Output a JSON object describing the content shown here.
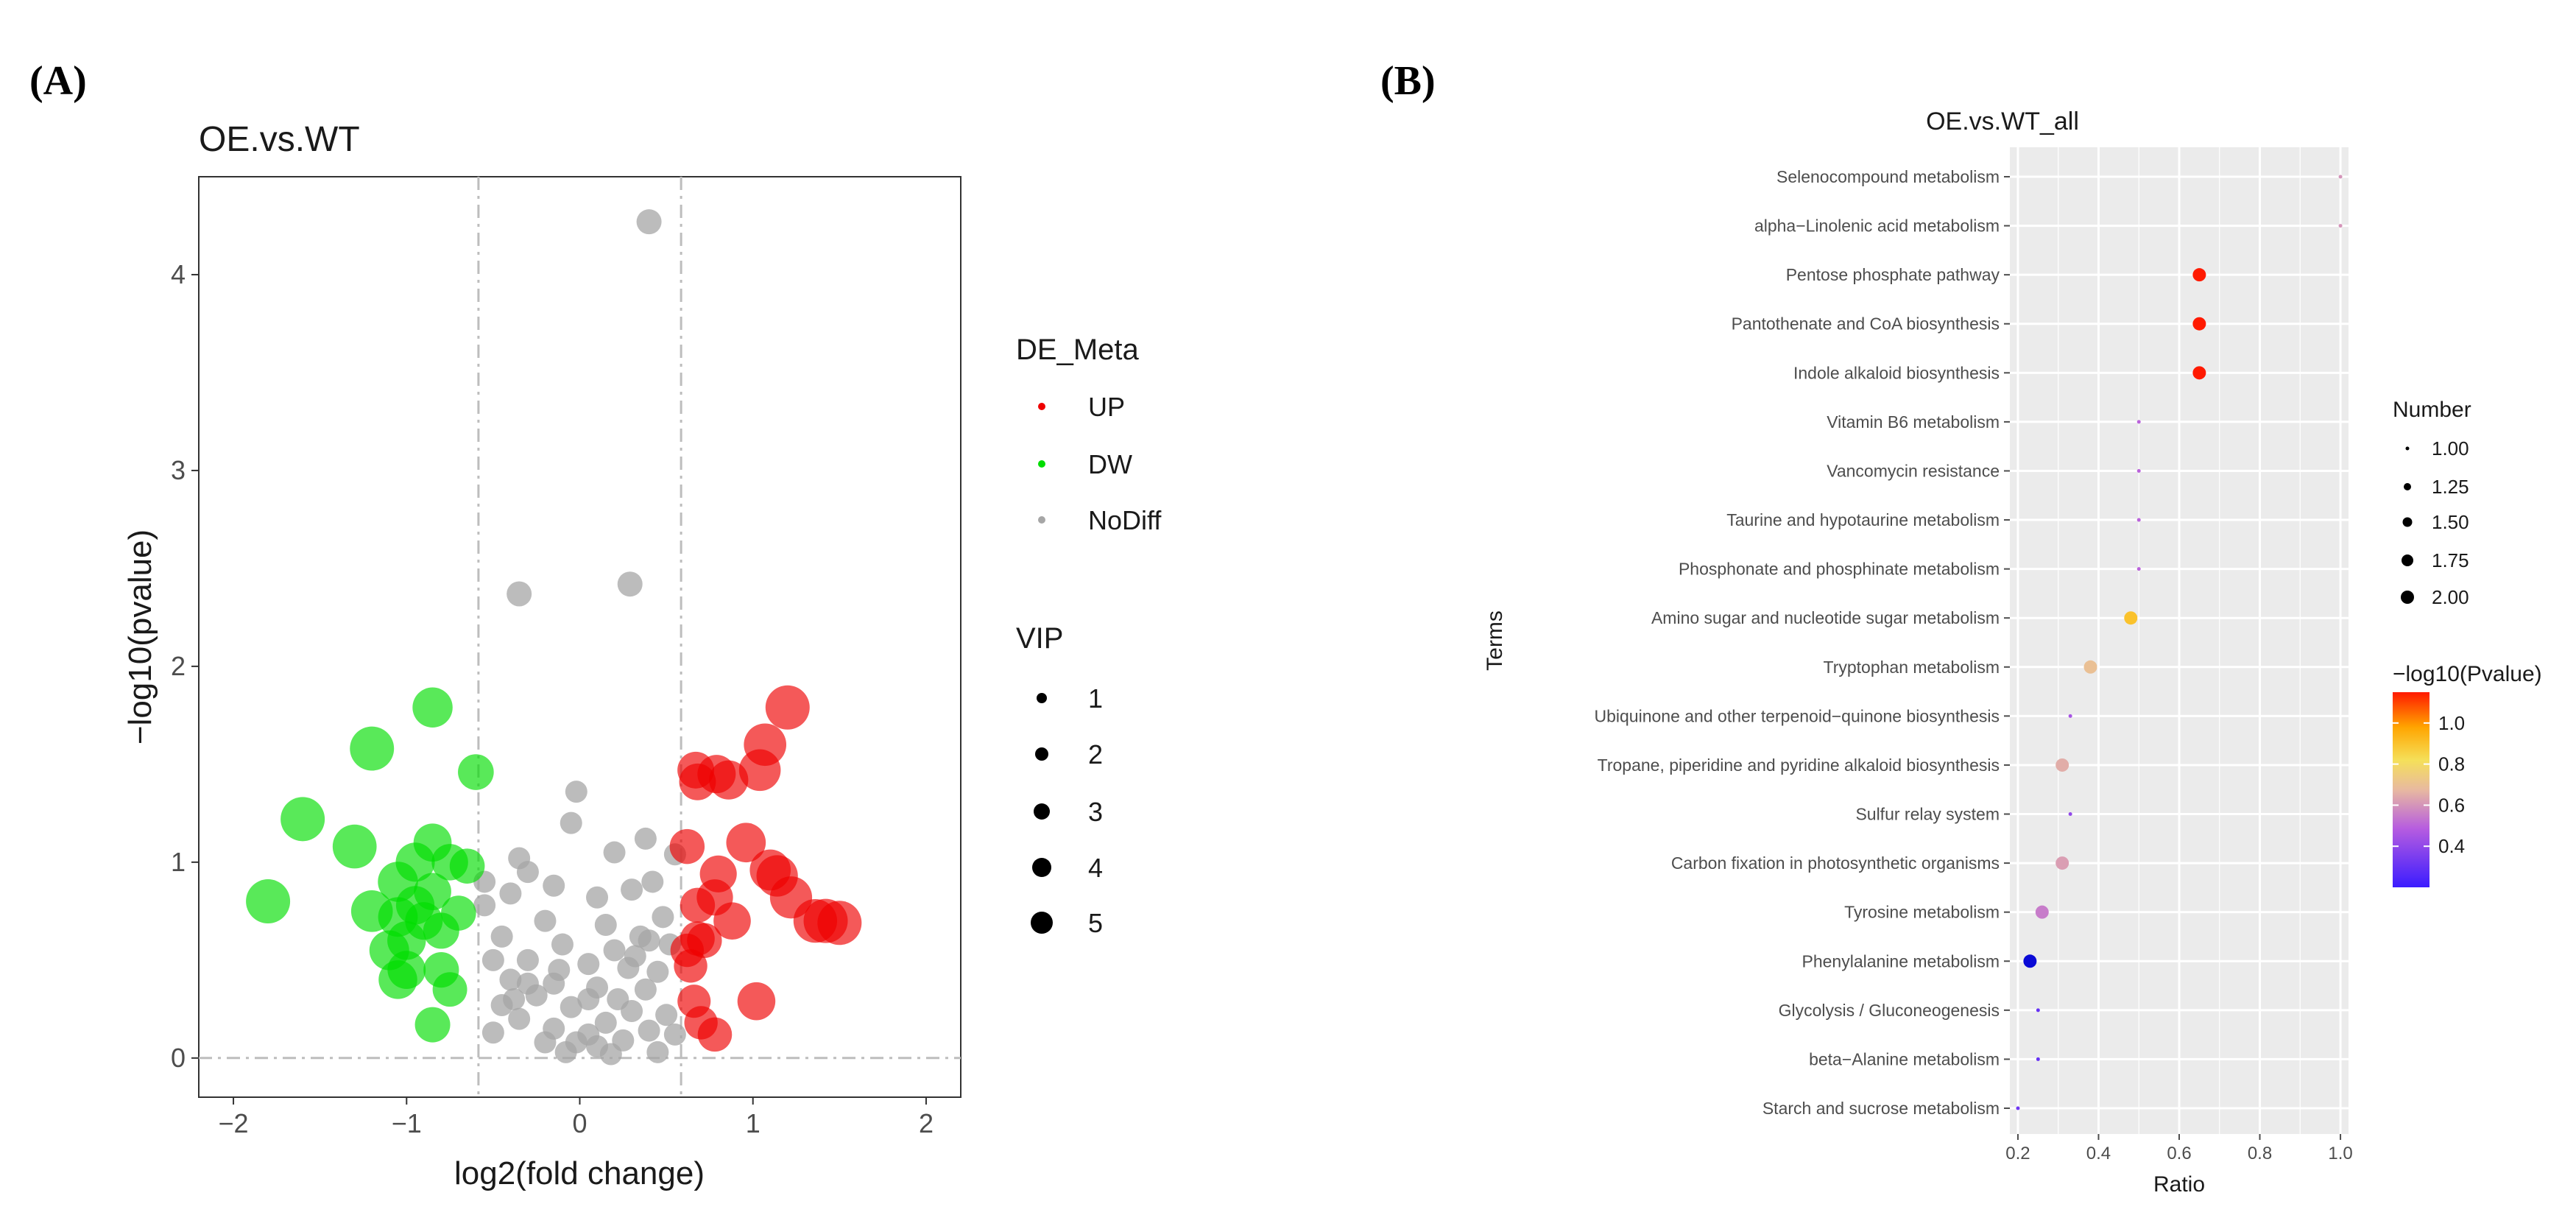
{
  "panel_a": {
    "label": "(A)"
  },
  "panel_b": {
    "label": "(B)"
  },
  "chart_data": [
    {
      "type": "scatter",
      "title": "OE.vs.WT",
      "xlabel": "log2(fold change)",
      "ylabel": "−log10(pvalue)",
      "xlim": [
        -2.2,
        2.2
      ],
      "ylim": [
        -0.2,
        4.5
      ],
      "xticks": [
        -2,
        -1,
        0,
        1,
        2
      ],
      "yticks": [
        0,
        1,
        2,
        3,
        4
      ],
      "grid": false,
      "threshold_lines": {
        "x": [
          -0.585,
          0.585
        ],
        "y": [
          0
        ]
      },
      "colors": {
        "UP": "#ee0000",
        "DW": "#00dd00",
        "NoDiff": "#a6a6a6"
      },
      "legend_color": {
        "title": "DE_Meta",
        "entries": [
          "UP",
          "DW",
          "NoDiff"
        ]
      },
      "legend_size": {
        "title": "VIP",
        "entries": [
          "1",
          "2",
          "3",
          "4",
          "5"
        ]
      },
      "points": {
        "UP": [
          [
            1.2,
            1.79
          ],
          [
            1.07,
            1.6
          ],
          [
            0.67,
            1.47
          ],
          [
            0.79,
            1.45
          ],
          [
            0.68,
            1.41
          ],
          [
            0.86,
            1.42
          ],
          [
            1.04,
            1.47
          ],
          [
            0.96,
            1.1
          ],
          [
            0.62,
            1.08
          ],
          [
            1.1,
            0.96
          ],
          [
            1.14,
            0.93
          ],
          [
            0.8,
            0.94
          ],
          [
            0.78,
            0.82
          ],
          [
            1.22,
            0.82
          ],
          [
            0.68,
            0.78
          ],
          [
            1.36,
            0.7
          ],
          [
            1.5,
            0.69
          ],
          [
            0.88,
            0.7
          ],
          [
            1.42,
            0.7
          ],
          [
            0.68,
            0.61
          ],
          [
            0.72,
            0.6
          ],
          [
            0.64,
            0.47
          ],
          [
            0.62,
            0.55
          ],
          [
            0.66,
            0.29
          ],
          [
            1.02,
            0.29
          ],
          [
            0.7,
            0.18
          ],
          [
            0.78,
            0.12
          ]
        ],
        "DW": [
          [
            -0.85,
            1.79
          ],
          [
            -1.2,
            1.58
          ],
          [
            -0.6,
            1.46
          ],
          [
            -1.6,
            1.22
          ],
          [
            -1.3,
            1.08
          ],
          [
            -0.85,
            1.1
          ],
          [
            -0.95,
            1.0
          ],
          [
            -0.75,
            1.0
          ],
          [
            -0.65,
            0.98
          ],
          [
            -1.05,
            0.9
          ],
          [
            -0.85,
            0.85
          ],
          [
            -0.95,
            0.78
          ],
          [
            -1.8,
            0.8
          ],
          [
            -1.2,
            0.75
          ],
          [
            -1.05,
            0.72
          ],
          [
            -0.9,
            0.7
          ],
          [
            -0.7,
            0.74
          ],
          [
            -1.0,
            0.6
          ],
          [
            -0.8,
            0.65
          ],
          [
            -1.1,
            0.55
          ],
          [
            -1.0,
            0.45
          ],
          [
            -0.8,
            0.45
          ],
          [
            -1.05,
            0.4
          ],
          [
            -0.75,
            0.35
          ],
          [
            -0.85,
            0.17
          ]
        ],
        "NoDiff": [
          [
            0.4,
            4.27
          ],
          [
            0.29,
            2.42
          ],
          [
            -0.35,
            2.37
          ],
          [
            -0.02,
            1.36
          ],
          [
            -0.05,
            1.2
          ],
          [
            0.2,
            1.05
          ],
          [
            0.38,
            1.12
          ],
          [
            0.55,
            1.04
          ],
          [
            -0.35,
            1.02
          ],
          [
            -0.3,
            0.95
          ],
          [
            -0.15,
            0.88
          ],
          [
            0.1,
            0.82
          ],
          [
            0.3,
            0.86
          ],
          [
            0.42,
            0.9
          ],
          [
            -0.4,
            0.84
          ],
          [
            -0.55,
            0.78
          ],
          [
            -0.2,
            0.7
          ],
          [
            0.15,
            0.68
          ],
          [
            0.48,
            0.72
          ],
          [
            -0.45,
            0.62
          ],
          [
            -0.1,
            0.58
          ],
          [
            0.2,
            0.55
          ],
          [
            0.35,
            0.62
          ],
          [
            0.52,
            0.58
          ],
          [
            -0.5,
            0.5
          ],
          [
            -0.3,
            0.5
          ],
          [
            0.05,
            0.48
          ],
          [
            0.28,
            0.46
          ],
          [
            0.45,
            0.44
          ],
          [
            -0.4,
            0.4
          ],
          [
            -0.15,
            0.38
          ],
          [
            0.1,
            0.36
          ],
          [
            0.38,
            0.35
          ],
          [
            -0.25,
            0.32
          ],
          [
            0.22,
            0.3
          ],
          [
            -0.45,
            0.27
          ],
          [
            -0.05,
            0.26
          ],
          [
            0.3,
            0.24
          ],
          [
            0.5,
            0.22
          ],
          [
            -0.35,
            0.2
          ],
          [
            0.15,
            0.18
          ],
          [
            -0.15,
            0.15
          ],
          [
            0.05,
            0.12
          ],
          [
            0.4,
            0.14
          ],
          [
            -0.5,
            0.13
          ],
          [
            -0.02,
            0.08
          ],
          [
            0.1,
            0.06
          ],
          [
            0.25,
            0.09
          ],
          [
            -0.2,
            0.08
          ],
          [
            0.55,
            0.12
          ],
          [
            0.45,
            0.03
          ],
          [
            0.18,
            0.02
          ],
          [
            -0.08,
            0.03
          ],
          [
            -0.3,
            0.38
          ],
          [
            0.32,
            0.52
          ],
          [
            -0.12,
            0.45
          ],
          [
            0.4,
            0.6
          ],
          [
            -0.38,
            0.3
          ],
          [
            0.05,
            0.3
          ],
          [
            -0.55,
            0.9
          ]
        ]
      }
    },
    {
      "type": "scatter",
      "title": "OE.vs.WT_all",
      "xlabel": "Ratio",
      "ylabel": "Terms",
      "xlim": [
        0.18,
        1.02
      ],
      "xticks": [
        "0.2",
        "0.4",
        "0.6",
        "0.8",
        "1.0"
      ],
      "grid": true,
      "terms": [
        "Selenocompound metabolism",
        "alpha−Linolenic acid metabolism",
        "Pentose phosphate pathway",
        "Pantothenate and CoA biosynthesis",
        "Indole alkaloid biosynthesis",
        "Vitamin B6 metabolism",
        "Vancomycin resistance",
        "Taurine and hypotaurine metabolism",
        "Phosphonate and phosphinate metabolism",
        "Amino sugar and nucleotide sugar metabolism",
        "Tryptophan metabolism",
        "Ubiquinone and other terpenoid−quinone biosynthesis",
        "Tropane, piperidine and pyridine alkaloid biosynthesis",
        "Sulfur relay system",
        "Carbon fixation in photosynthetic organisms",
        "Tyrosine metabolism",
        "Phenylalanine metabolism",
        "Glycolysis / Gluconeogenesis",
        "beta−Alanine metabolism",
        "Starch and sucrose metabolism"
      ],
      "ratio": [
        1.0,
        1.0,
        0.65,
        0.65,
        0.65,
        0.5,
        0.5,
        0.5,
        0.5,
        0.48,
        0.38,
        0.33,
        0.31,
        0.33,
        0.31,
        0.26,
        0.23,
        0.25,
        0.25,
        0.2
      ],
      "number": [
        1,
        1,
        2,
        2,
        2,
        1,
        1,
        1,
        1,
        2,
        2,
        1,
        2,
        1,
        2,
        2,
        2,
        1,
        1,
        1
      ],
      "neg_log10_pvalue": [
        0.6,
        0.6,
        1.15,
        1.15,
        1.15,
        0.5,
        0.5,
        0.5,
        0.5,
        0.9,
        0.7,
        0.45,
        0.65,
        0.4,
        0.62,
        0.55,
        0.2,
        0.3,
        0.3,
        0.32
      ],
      "legend_size": {
        "title": "Number",
        "entries": [
          "1.00",
          "1.25",
          "1.50",
          "1.75",
          "2.00"
        ]
      },
      "legend_color": {
        "title": "−log10(Pvalue)",
        "ticks": [
          "1.0",
          "0.8",
          "0.6",
          "0.4"
        ],
        "range": [
          0.2,
          1.15
        ]
      }
    }
  ]
}
